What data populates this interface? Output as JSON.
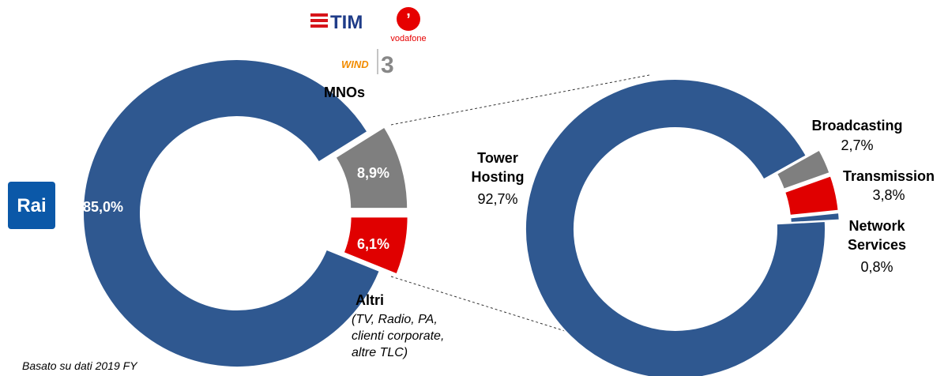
{
  "footnote": "Basato su dati 2019 FY",
  "logos": {
    "tim": "TIM",
    "vodafone": "vodafone",
    "wind": "WIND",
    "three": "3"
  },
  "chart_data": [
    {
      "type": "donut",
      "categories": [
        "Rai",
        "MNOs",
        "Altri"
      ],
      "annotation": "(TV, Radio, PA, clienti corporate, altre TLC)",
      "values": [
        85.0,
        8.9,
        6.1
      ],
      "value_labels": [
        "85,0%",
        "8,9%",
        "6,1%"
      ],
      "colors": [
        "#2f5890",
        "#7f7f7f",
        "#e00000"
      ]
    },
    {
      "type": "donut",
      "categories": [
        "Tower Hosting",
        "Broadcasting",
        "Transmission",
        "Network Services"
      ],
      "values": [
        92.7,
        2.7,
        3.8,
        0.8
      ],
      "value_labels": [
        "92,7%",
        "2,7%",
        "3,8%",
        "0,8%"
      ],
      "colors": [
        "#2f5890",
        "#7f7f7f",
        "#e00000",
        "#2f5890"
      ]
    }
  ]
}
